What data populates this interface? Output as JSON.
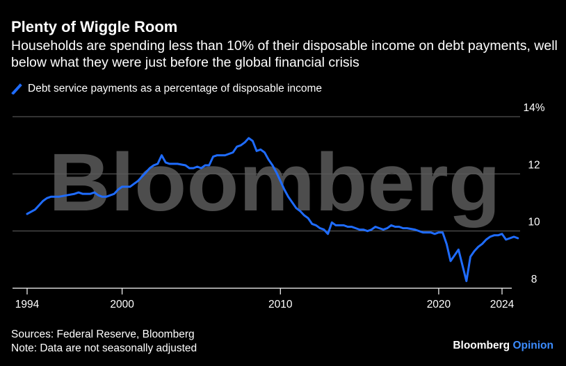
{
  "header": {
    "title": "Plenty of Wiggle Room",
    "subtitle": "Households are spending less than 10% of their disposable income on debt payments, well below what they were just before the global financial crisis"
  },
  "footer": {
    "sources": "Sources: Federal Reserve, Bloomberg",
    "note": "Note: Data are not seasonally adjusted"
  },
  "brand": {
    "name": "Bloomberg",
    "suffix": "Opinion"
  },
  "watermark": "Bloomberg",
  "colors": {
    "background": "#000000",
    "series": "#1f6cff",
    "grid": "#666666",
    "watermark": "#5a5a5a"
  },
  "chart_data": {
    "type": "line",
    "xlim": [
      1994,
      2025.5
    ],
    "ylim": [
      7.6,
      14.4
    ],
    "yticks": [
      8,
      10,
      12,
      14
    ],
    "ytick_labels": [
      "8",
      "10",
      "12",
      "14%"
    ],
    "xticks": [
      1994,
      2000,
      2010,
      2020,
      2024
    ],
    "xtick_labels": [
      "1994",
      "2000",
      "2010",
      "2020",
      "2024"
    ],
    "grid": true,
    "legend_position": "top-left",
    "series": [
      {
        "name": "Debt service payments as a percentage of disposable income",
        "color": "#1f6cff",
        "points": [
          [
            1994.0,
            10.6
          ],
          [
            1994.5,
            10.75
          ],
          [
            1994.75,
            10.9
          ],
          [
            1995.0,
            11.05
          ],
          [
            1995.25,
            11.15
          ],
          [
            1995.5,
            11.2
          ],
          [
            1996.0,
            11.2
          ],
          [
            1996.5,
            11.25
          ],
          [
            1997.0,
            11.3
          ],
          [
            1997.25,
            11.35
          ],
          [
            1997.5,
            11.3
          ],
          [
            1998.0,
            11.3
          ],
          [
            1998.25,
            11.35
          ],
          [
            1998.5,
            11.25
          ],
          [
            1998.75,
            11.2
          ],
          [
            1999.0,
            11.2
          ],
          [
            1999.25,
            11.25
          ],
          [
            1999.5,
            11.3
          ],
          [
            1999.75,
            11.45
          ],
          [
            2000.0,
            11.55
          ],
          [
            2000.5,
            11.55
          ],
          [
            2000.75,
            11.65
          ],
          [
            2001.0,
            11.75
          ],
          [
            2001.25,
            11.9
          ],
          [
            2001.5,
            12.05
          ],
          [
            2001.75,
            12.2
          ],
          [
            2002.0,
            12.3
          ],
          [
            2002.25,
            12.35
          ],
          [
            2002.5,
            12.65
          ],
          [
            2002.75,
            12.4
          ],
          [
            2003.0,
            12.35
          ],
          [
            2003.5,
            12.35
          ],
          [
            2004.0,
            12.3
          ],
          [
            2004.25,
            12.2
          ],
          [
            2004.5,
            12.2
          ],
          [
            2004.75,
            12.25
          ],
          [
            2005.0,
            12.2
          ],
          [
            2005.25,
            12.3
          ],
          [
            2005.5,
            12.3
          ],
          [
            2005.75,
            12.6
          ],
          [
            2006.0,
            12.65
          ],
          [
            2006.5,
            12.65
          ],
          [
            2007.0,
            12.75
          ],
          [
            2007.25,
            12.95
          ],
          [
            2007.5,
            13.0
          ],
          [
            2007.75,
            13.1
          ],
          [
            2008.0,
            13.25
          ],
          [
            2008.25,
            13.15
          ],
          [
            2008.5,
            12.8
          ],
          [
            2008.75,
            12.85
          ],
          [
            2009.0,
            12.75
          ],
          [
            2009.25,
            12.5
          ],
          [
            2009.5,
            12.3
          ],
          [
            2009.75,
            12.05
          ],
          [
            2010.0,
            11.75
          ],
          [
            2010.25,
            11.45
          ],
          [
            2010.5,
            11.2
          ],
          [
            2010.75,
            11.0
          ],
          [
            2011.0,
            10.8
          ],
          [
            2011.25,
            10.7
          ],
          [
            2011.5,
            10.55
          ],
          [
            2011.75,
            10.45
          ],
          [
            2012.0,
            10.25
          ],
          [
            2012.25,
            10.2
          ],
          [
            2012.5,
            10.1
          ],
          [
            2012.75,
            10.05
          ],
          [
            2013.0,
            9.9
          ],
          [
            2013.25,
            10.3
          ],
          [
            2013.5,
            10.2
          ],
          [
            2014.0,
            10.2
          ],
          [
            2014.25,
            10.15
          ],
          [
            2014.5,
            10.15
          ],
          [
            2015.0,
            10.05
          ],
          [
            2015.25,
            10.05
          ],
          [
            2015.5,
            10.0
          ],
          [
            2015.75,
            10.05
          ],
          [
            2016.0,
            10.15
          ],
          [
            2016.25,
            10.1
          ],
          [
            2016.5,
            10.05
          ],
          [
            2016.75,
            10.1
          ],
          [
            2017.0,
            10.2
          ],
          [
            2017.25,
            10.15
          ],
          [
            2017.5,
            10.15
          ],
          [
            2017.75,
            10.1
          ],
          [
            2018.0,
            10.1
          ],
          [
            2018.5,
            10.05
          ],
          [
            2019.0,
            9.95
          ],
          [
            2019.5,
            9.95
          ],
          [
            2019.75,
            9.9
          ],
          [
            2020.0,
            9.95
          ],
          [
            2020.25,
            9.95
          ],
          [
            2020.5,
            9.55
          ],
          [
            2020.75,
            8.95
          ],
          [
            2021.0,
            9.15
          ],
          [
            2021.25,
            9.35
          ],
          [
            2021.5,
            8.8
          ],
          [
            2021.75,
            8.25
          ],
          [
            2022.0,
            9.1
          ],
          [
            2022.25,
            9.3
          ],
          [
            2022.5,
            9.45
          ],
          [
            2022.75,
            9.55
          ],
          [
            2023.0,
            9.7
          ],
          [
            2023.25,
            9.8
          ],
          [
            2023.5,
            9.85
          ],
          [
            2023.75,
            9.85
          ],
          [
            2024.0,
            9.9
          ],
          [
            2024.25,
            9.7
          ],
          [
            2024.5,
            9.75
          ],
          [
            2024.75,
            9.8
          ],
          [
            2025.0,
            9.75
          ]
        ]
      }
    ]
  }
}
